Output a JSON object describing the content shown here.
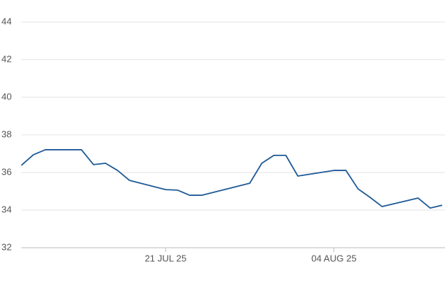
{
  "chart_data": {
    "type": "line",
    "x": [
      "2025-07-09",
      "2025-07-10",
      "2025-07-11",
      "2025-07-14",
      "2025-07-15",
      "2025-07-16",
      "2025-07-17",
      "2025-07-18",
      "2025-07-21",
      "2025-07-22",
      "2025-07-23",
      "2025-07-24",
      "2025-07-28",
      "2025-07-29",
      "2025-07-30",
      "2025-07-31",
      "2025-08-01",
      "2025-08-04",
      "2025-08-05",
      "2025-08-06",
      "2025-08-07",
      "2025-08-08",
      "2025-08-11",
      "2025-08-12",
      "2025-08-13"
    ],
    "series": [
      {
        "color": "#1f5a96",
        "values": [
          36.38,
          36.94,
          37.21,
          37.21,
          36.42,
          36.49,
          36.11,
          35.58,
          35.09,
          35.06,
          34.79,
          34.79,
          35.43,
          36.49,
          36.91,
          36.91,
          35.81,
          36.11,
          36.11,
          35.13,
          34.68,
          34.19,
          34.64,
          34.11,
          34.26
        ]
      }
    ],
    "xlim": [
      "2025-07-09",
      "2025-08-13"
    ],
    "xticks": [
      {
        "value": "2025-07-21",
        "label": "21 JUL 25"
      },
      {
        "value": "2025-08-04",
        "label": "04 AUG 25"
      }
    ],
    "ylim": [
      32,
      44
    ],
    "yticks": [
      32,
      34,
      36,
      38,
      40,
      42,
      44
    ],
    "grid": true
  }
}
